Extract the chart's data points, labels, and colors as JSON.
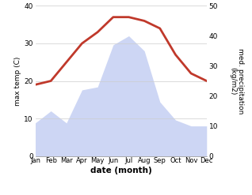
{
  "months": [
    "Jan",
    "Feb",
    "Mar",
    "Apr",
    "May",
    "Jun",
    "Jul",
    "Aug",
    "Sep",
    "Oct",
    "Nov",
    "Dec"
  ],
  "x": [
    0,
    1,
    2,
    3,
    4,
    5,
    6,
    7,
    8,
    9,
    10,
    11
  ],
  "temperature": [
    19,
    20,
    25,
    30,
    33,
    37,
    37,
    36,
    34,
    27,
    22,
    20
  ],
  "precipitation": [
    11,
    15,
    11,
    22,
    23,
    37,
    40,
    35,
    18,
    12,
    10,
    10
  ],
  "temp_color": "#c0392b",
  "precip_fill_color": "#b8c5f0",
  "temp_ylim": [
    0,
    40
  ],
  "precip_ylim": [
    0,
    50
  ],
  "ylabel_left": "max temp (C)",
  "ylabel_right": "med. precipitation\n(kg/m2)",
  "xlabel": "date (month)",
  "bg_color": "#ffffff",
  "grid_color": "#cccccc",
  "temp_linewidth": 2.0
}
